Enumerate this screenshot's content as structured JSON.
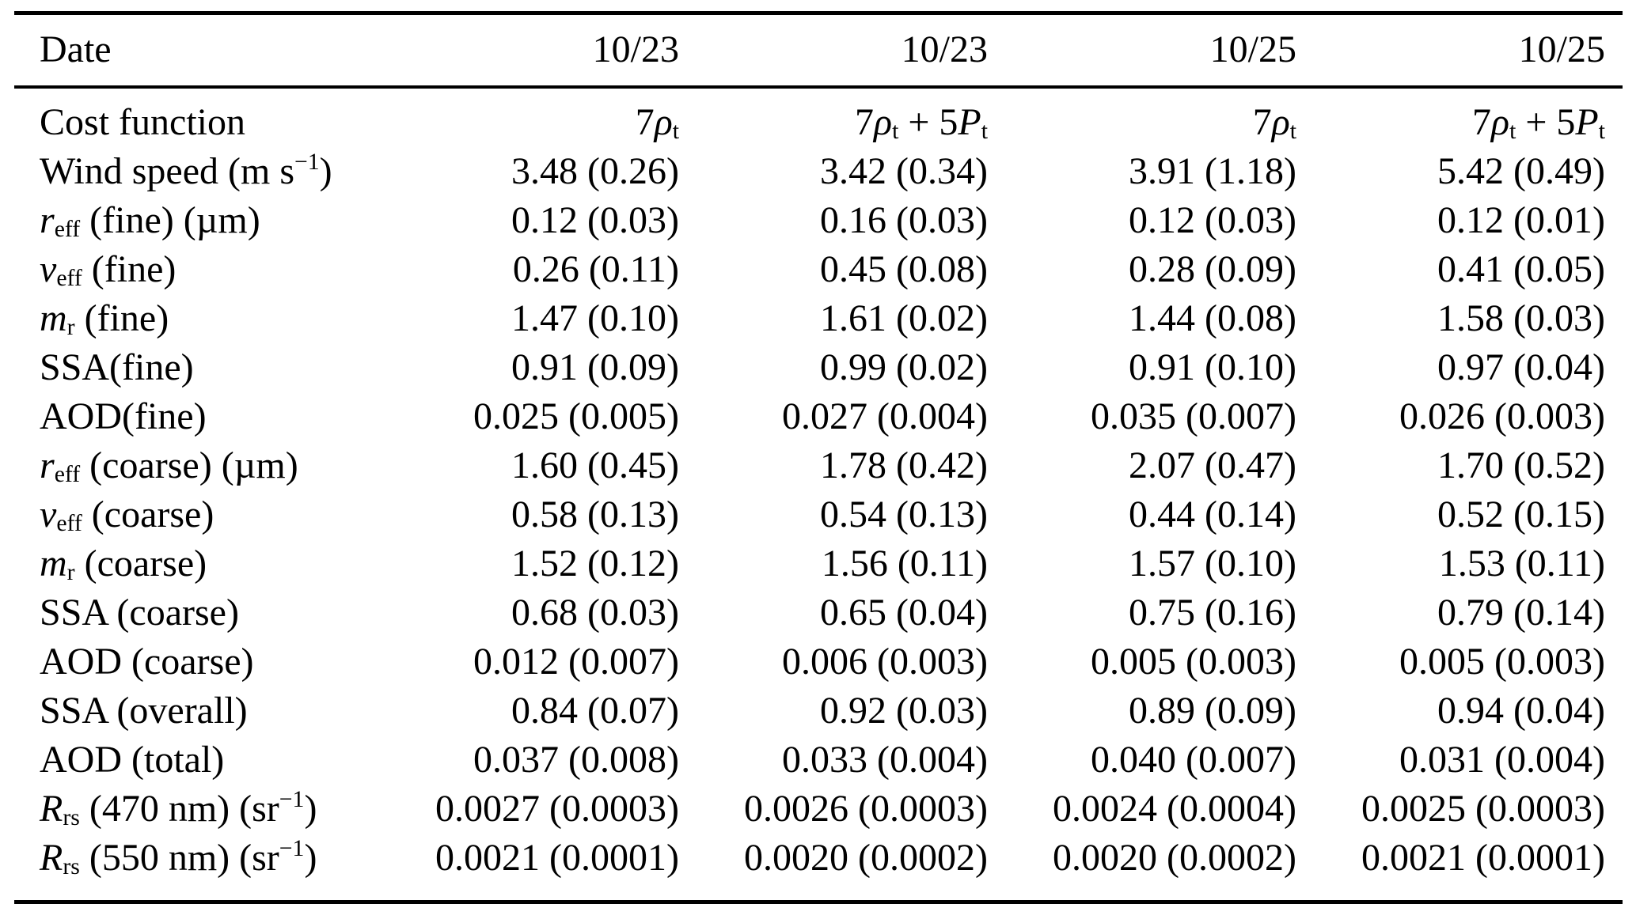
{
  "table": {
    "header": {
      "label": "Date",
      "columns": [
        "10/23",
        "10/23",
        "10/25",
        "10/25"
      ]
    },
    "rows": [
      {
        "id": "cost-function",
        "label": "Cost function",
        "cells": [
          [
            {
              "t": "7"
            },
            {
              "t": "ρ",
              "s": "i"
            },
            {
              "t": "t",
              "s": "sub"
            }
          ],
          [
            {
              "t": "7"
            },
            {
              "t": "ρ",
              "s": "i"
            },
            {
              "t": "t",
              "s": "sub"
            },
            {
              "t": " + 5"
            },
            {
              "t": "P",
              "s": "i"
            },
            {
              "t": "t",
              "s": "sub"
            }
          ],
          [
            {
              "t": "7"
            },
            {
              "t": "ρ",
              "s": "i"
            },
            {
              "t": "t",
              "s": "sub"
            }
          ],
          [
            {
              "t": "7"
            },
            {
              "t": "ρ",
              "s": "i"
            },
            {
              "t": "t",
              "s": "sub"
            },
            {
              "t": " + 5"
            },
            {
              "t": "P",
              "s": "i"
            },
            {
              "t": "t",
              "s": "sub"
            }
          ]
        ]
      },
      {
        "id": "wind-speed",
        "label": [
          {
            "t": "Wind speed (m s"
          },
          {
            "t": "−1",
            "s": "sup"
          },
          {
            "t": ")"
          }
        ],
        "cells": [
          "3.48 (0.26)",
          "3.42 (0.34)",
          "3.91 (1.18)",
          "5.42 (0.49)"
        ]
      },
      {
        "id": "reff-fine",
        "label": [
          {
            "t": "r",
            "s": "i"
          },
          {
            "t": "eff",
            "s": "sub"
          },
          {
            "t": " (fine) (µm)"
          }
        ],
        "cells": [
          "0.12 (0.03)",
          "0.16 (0.03)",
          "0.12 (0.03)",
          "0.12 (0.01)"
        ]
      },
      {
        "id": "veff-fine",
        "label": [
          {
            "t": "v",
            "s": "i"
          },
          {
            "t": "eff",
            "s": "sub"
          },
          {
            "t": " (fine)"
          }
        ],
        "cells": [
          "0.26 (0.11)",
          "0.45 (0.08)",
          "0.28 (0.09)",
          "0.41 (0.05)"
        ]
      },
      {
        "id": "mr-fine",
        "label": [
          {
            "t": "m",
            "s": "i"
          },
          {
            "t": "r",
            "s": "sub"
          },
          {
            "t": " (fine)"
          }
        ],
        "cells": [
          "1.47 (0.10)",
          "1.61 (0.02)",
          "1.44 (0.08)",
          "1.58 (0.03)"
        ]
      },
      {
        "id": "ssa-fine",
        "label": "SSA(fine)",
        "cells": [
          "0.91 (0.09)",
          "0.99 (0.02)",
          "0.91 (0.10)",
          "0.97 (0.04)"
        ]
      },
      {
        "id": "aod-fine",
        "label": "AOD(fine)",
        "cells": [
          "0.025 (0.005)",
          "0.027 (0.004)",
          "0.035 (0.007)",
          "0.026 (0.003)"
        ]
      },
      {
        "id": "reff-coarse",
        "label": [
          {
            "t": "r",
            "s": "i"
          },
          {
            "t": "eff",
            "s": "sub"
          },
          {
            "t": " (coarse) (µm)"
          }
        ],
        "cells": [
          "1.60 (0.45)",
          "1.78 (0.42)",
          "2.07 (0.47)",
          "1.70 (0.52)"
        ]
      },
      {
        "id": "veff-coarse",
        "label": [
          {
            "t": "v",
            "s": "i"
          },
          {
            "t": "eff",
            "s": "sub"
          },
          {
            "t": " (coarse)"
          }
        ],
        "cells": [
          "0.58 (0.13)",
          "0.54 (0.13)",
          "0.44 (0.14)",
          "0.52 (0.15)"
        ]
      },
      {
        "id": "mr-coarse",
        "label": [
          {
            "t": "m",
            "s": "i"
          },
          {
            "t": "r",
            "s": "sub"
          },
          {
            "t": " (coarse)"
          }
        ],
        "cells": [
          "1.52 (0.12)",
          "1.56 (0.11)",
          "1.57 (0.10)",
          "1.53 (0.11)"
        ]
      },
      {
        "id": "ssa-coarse",
        "label": "SSA (coarse)",
        "cells": [
          "0.68 (0.03)",
          "0.65 (0.04)",
          "0.75 (0.16)",
          "0.79 (0.14)"
        ]
      },
      {
        "id": "aod-coarse",
        "label": "AOD (coarse)",
        "cells": [
          "0.012 (0.007)",
          "0.006 (0.003)",
          "0.005 (0.003)",
          "0.005 (0.003)"
        ]
      },
      {
        "id": "ssa-overall",
        "label": "SSA (overall)",
        "cells": [
          "0.84 (0.07)",
          "0.92 (0.03)",
          "0.89 (0.09)",
          "0.94 (0.04)"
        ]
      },
      {
        "id": "aod-total",
        "label": "AOD (total)",
        "cells": [
          "0.037 (0.008)",
          "0.033 (0.004)",
          "0.040 (0.007)",
          "0.031 (0.004)"
        ]
      },
      {
        "id": "rrs-470",
        "label": [
          {
            "t": "R",
            "s": "i"
          },
          {
            "t": "rs",
            "s": "sub"
          },
          {
            "t": " (470 nm) (sr"
          },
          {
            "t": "−1",
            "s": "sup"
          },
          {
            "t": ")"
          }
        ],
        "cells": [
          "0.0027 (0.0003)",
          "0.0026 (0.0003)",
          "0.0024 (0.0004)",
          "0.0025 (0.0003)"
        ]
      },
      {
        "id": "rrs-550",
        "label": [
          {
            "t": "R",
            "s": "i"
          },
          {
            "t": "rs",
            "s": "sub"
          },
          {
            "t": " (550 nm) (sr"
          },
          {
            "t": "−1",
            "s": "sup"
          },
          {
            "t": ")"
          }
        ],
        "cells": [
          "0.0021 (0.0001)",
          "0.0020 (0.0002)",
          "0.0020 (0.0002)",
          "0.0021 (0.0001)"
        ]
      }
    ]
  }
}
